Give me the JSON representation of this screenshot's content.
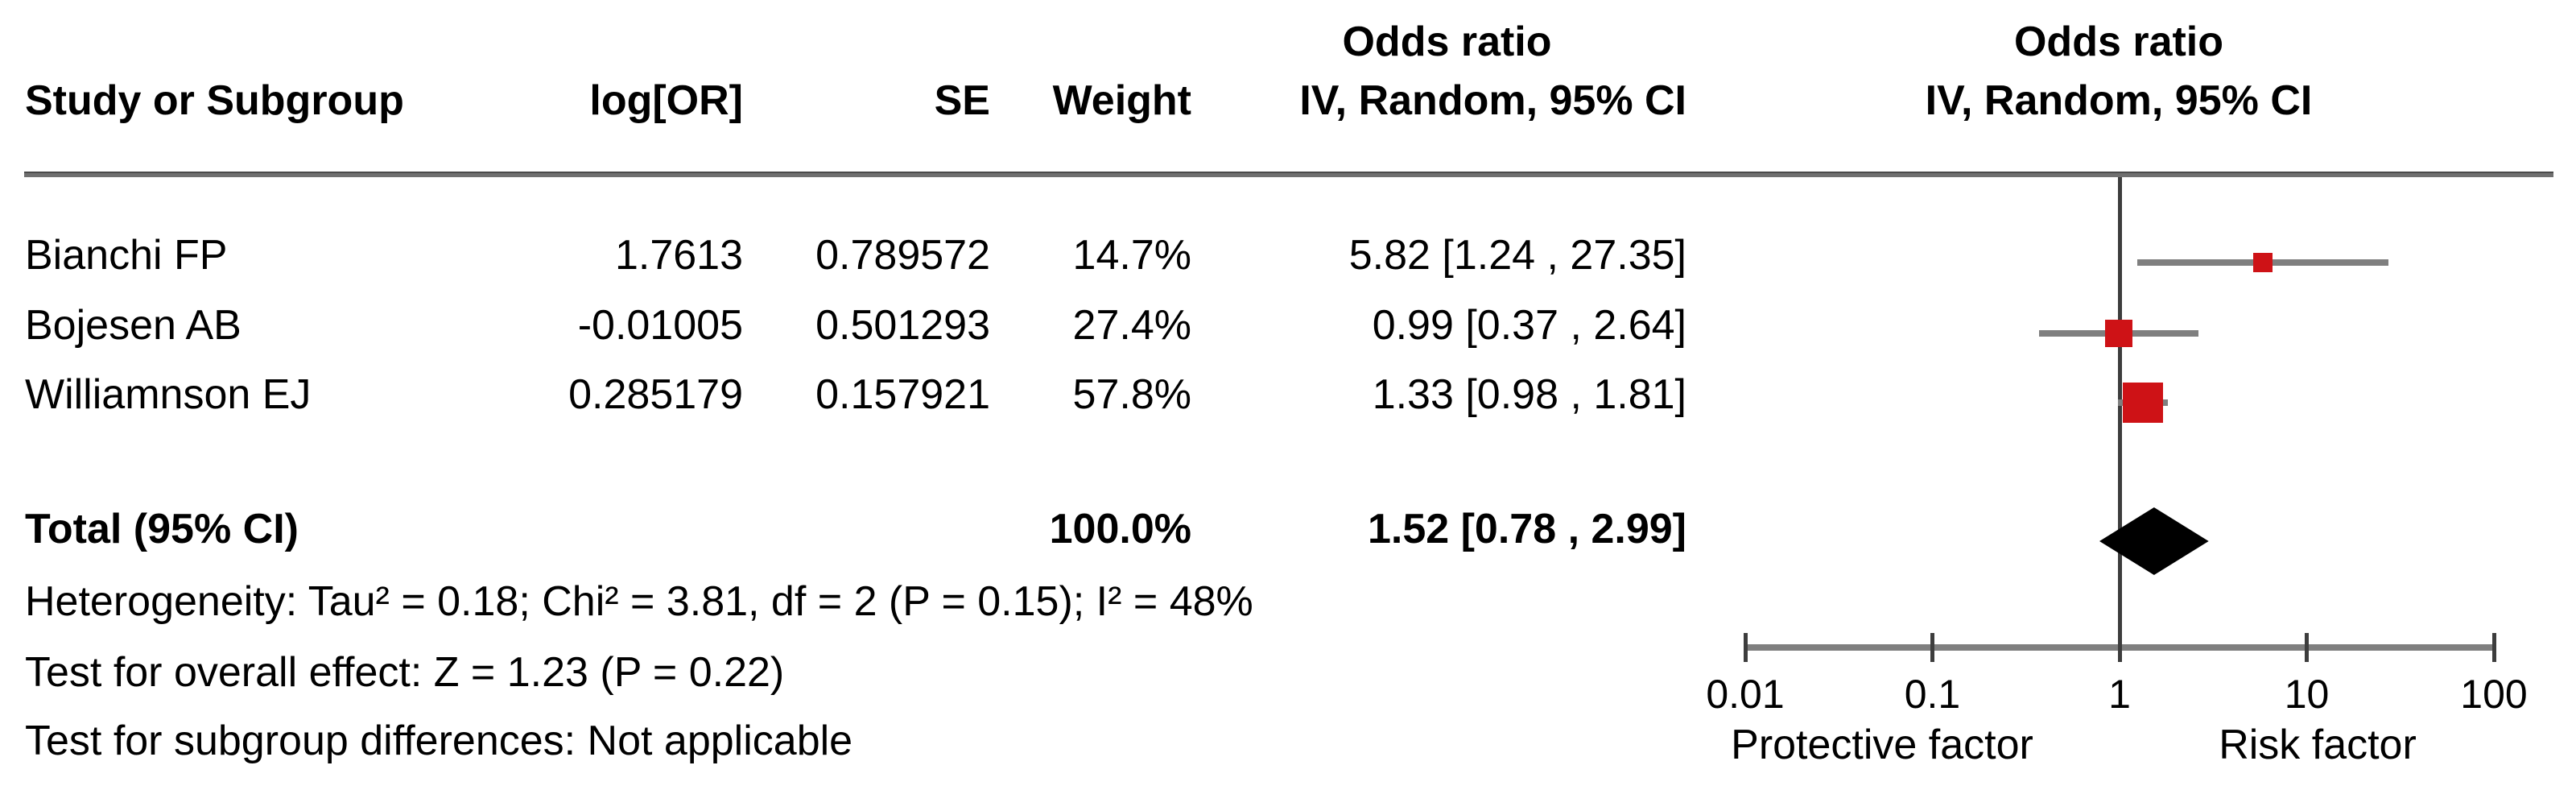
{
  "header": {
    "col_study": "Study or Subgroup",
    "col_logor": "log[OR]",
    "col_se": "SE",
    "col_weight": "Weight",
    "or_text_col_line1": "Odds ratio",
    "or_text_col_line2": "IV, Random, 95% CI",
    "or_plot_col_line1": "Odds ratio",
    "or_plot_col_line2": "IV, Random, 95% CI"
  },
  "rows": [
    {
      "study": "Bianchi FP",
      "log_or": "1.7613",
      "se": "0.789572",
      "weight": "14.7%",
      "ci_text": "5.82 [1.24 , 27.35]"
    },
    {
      "study": "Bojesen AB",
      "log_or": "-0.01005",
      "se": "0.501293",
      "weight": "27.4%",
      "ci_text": "0.99 [0.37 , 2.64]"
    },
    {
      "study": "Williamnson EJ",
      "log_or": "0.285179",
      "se": "0.157921",
      "weight": "57.8%",
      "ci_text": "1.33 [0.98 , 1.81]"
    }
  ],
  "total": {
    "label": "Total (95% CI)",
    "weight": "100.0%",
    "ci_text": "1.52 [0.78 , 2.99]"
  },
  "footnotes": {
    "heterogeneity": "Heterogeneity: Tau² = 0.18; Chi² = 3.81, df = 2 (P = 0.15); I² = 48%",
    "overall_effect": "Test for overall effect: Z = 1.23 (P = 0.22)",
    "subgroup_differences": "Test for subgroup differences: Not applicable"
  },
  "axis": {
    "tick_labels": [
      "0.01",
      "0.1",
      "1",
      "10",
      "100"
    ],
    "left_label": "Protective factor",
    "right_label": "Risk factor"
  },
  "colors": {
    "marker_red": "#ce1216",
    "diamond_black": "#000000",
    "whisker_gray": "#7f7f7f",
    "line_dark": "#3d3d3d"
  },
  "chart_data": {
    "type": "scatter",
    "subtype": "forest-plot",
    "effect_measure": "Odds ratio",
    "model": "IV, Random, 95% CI",
    "scale": "log10",
    "x_ticks": [
      0.01,
      0.1,
      1,
      10,
      100
    ],
    "xlim": [
      0.01,
      100
    ],
    "null_line": 1,
    "studies": [
      {
        "name": "Bianchi FP",
        "log_or": 1.7613,
        "se": 0.789572,
        "or": 5.82,
        "ci_low": 1.24,
        "ci_high": 27.35,
        "weight_pct": 14.7
      },
      {
        "name": "Bojesen AB",
        "log_or": -0.01005,
        "se": 0.501293,
        "or": 0.99,
        "ci_low": 0.37,
        "ci_high": 2.64,
        "weight_pct": 27.4
      },
      {
        "name": "Williamnson EJ",
        "log_or": 0.285179,
        "se": 0.157921,
        "or": 1.33,
        "ci_low": 0.98,
        "ci_high": 1.81,
        "weight_pct": 57.8
      }
    ],
    "total": {
      "or": 1.52,
      "ci_low": 0.78,
      "ci_high": 2.99,
      "weight_pct": 100.0
    },
    "heterogeneity": {
      "tau2": 0.18,
      "chi2": 3.81,
      "df": 2,
      "p": 0.15,
      "i2_pct": 48
    },
    "overall_effect": {
      "z": 1.23,
      "p": 0.22
    },
    "x_axis_direction_labels": {
      "left": "Protective factor",
      "right": "Risk factor"
    }
  }
}
